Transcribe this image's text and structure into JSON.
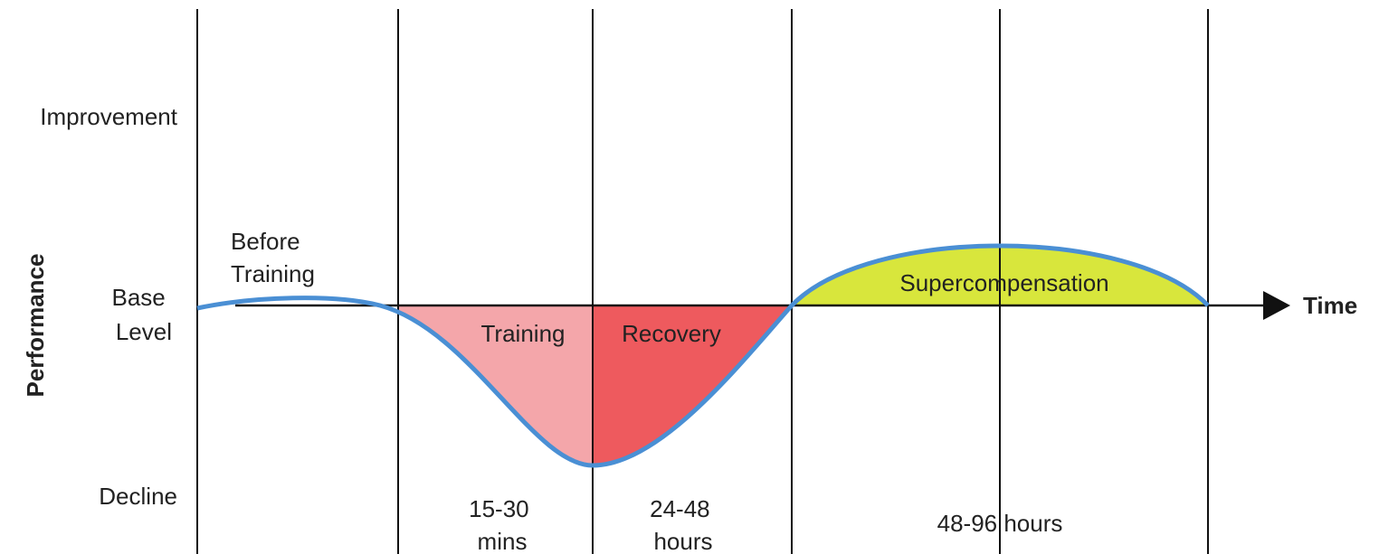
{
  "axis": {
    "y_title": "Performance",
    "x_title": "Time",
    "levels": {
      "top": "Improvement",
      "middle": [
        "Base",
        "Level"
      ],
      "bottom": "Decline"
    }
  },
  "phases": {
    "before": [
      "Before",
      "Training"
    ],
    "training": "Training",
    "recovery": "Recovery",
    "supercompensation": "Supercompensation"
  },
  "durations": {
    "training": [
      "15-30",
      "mins"
    ],
    "recovery": [
      "24-48",
      "hours"
    ],
    "supercompensation": "48-96 hours"
  }
}
